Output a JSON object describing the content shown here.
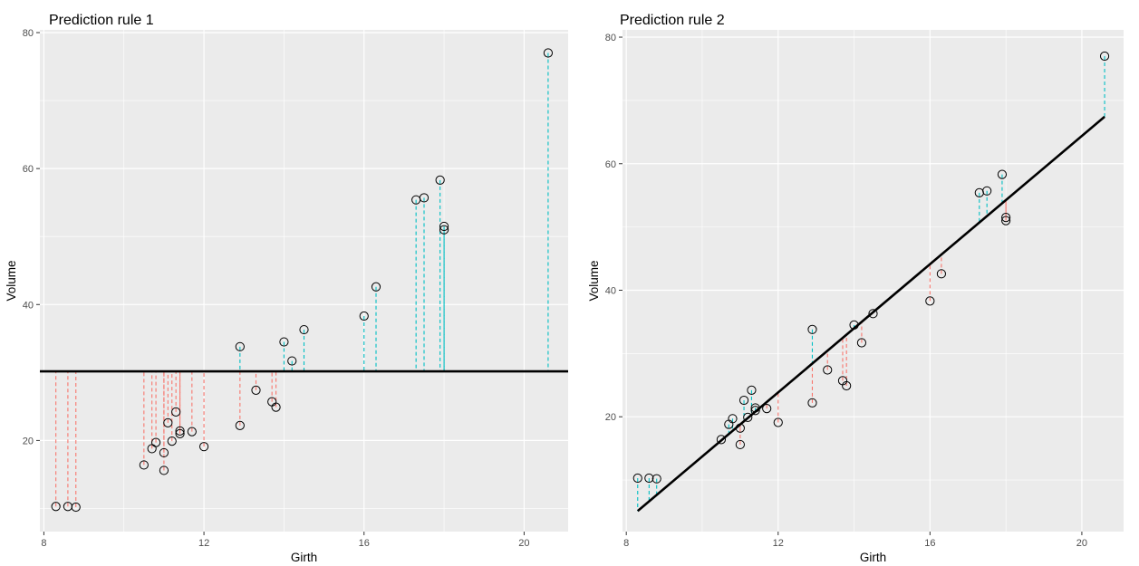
{
  "chart_data": [
    {
      "type": "scatter",
      "title": "Prediction rule 1",
      "xlabel": "Girth",
      "ylabel": "Volume",
      "xlim": [
        7.9,
        21.1
      ],
      "ylim": [
        6.6,
        80.4
      ],
      "x_ticks": [
        8,
        12,
        16,
        20
      ],
      "y_ticks": [
        20,
        40,
        60,
        80
      ],
      "grid": true,
      "prediction": {
        "kind": "constant",
        "value": 30.17
      },
      "residual_colors": {
        "below": "#F8766D",
        "above": "#00BFC4"
      },
      "points": {
        "x": [
          8.3,
          8.6,
          8.8,
          10.5,
          10.7,
          10.8,
          11.0,
          11.0,
          11.1,
          11.2,
          11.3,
          11.4,
          11.4,
          11.7,
          12.0,
          12.9,
          12.9,
          13.3,
          13.7,
          13.8,
          14.0,
          14.2,
          14.5,
          16.0,
          16.3,
          17.3,
          17.5,
          17.9,
          18.0,
          18.0,
          20.6
        ],
        "y": [
          10.3,
          10.3,
          10.2,
          16.4,
          18.8,
          19.7,
          15.6,
          18.2,
          22.6,
          19.9,
          24.2,
          21.0,
          21.4,
          21.3,
          19.1,
          22.2,
          33.8,
          27.4,
          25.7,
          24.9,
          34.5,
          31.7,
          36.3,
          38.3,
          42.6,
          55.4,
          55.7,
          58.3,
          51.5,
          51.0,
          77.0
        ]
      }
    },
    {
      "type": "scatter",
      "title": "Prediction rule 2",
      "xlabel": "Girth",
      "ylabel": "Volume",
      "xlim": [
        7.9,
        21.1
      ],
      "ylim": [
        1.85,
        81.15
      ],
      "x_ticks": [
        8,
        12,
        16,
        20
      ],
      "y_ticks": [
        20,
        40,
        60,
        80
      ],
      "grid": true,
      "prediction": {
        "kind": "linear",
        "intercept": -36.94,
        "slope": 5.066
      },
      "residual_colors": {
        "below": "#F8766D",
        "above": "#00BFC4"
      },
      "points": {
        "x": [
          8.3,
          8.6,
          8.8,
          10.5,
          10.7,
          10.8,
          11.0,
          11.0,
          11.1,
          11.2,
          11.3,
          11.4,
          11.4,
          11.7,
          12.0,
          12.9,
          12.9,
          13.3,
          13.7,
          13.8,
          14.0,
          14.2,
          14.5,
          16.0,
          16.3,
          17.3,
          17.5,
          17.9,
          18.0,
          18.0,
          20.6
        ],
        "y": [
          10.3,
          10.3,
          10.2,
          16.4,
          18.8,
          19.7,
          15.6,
          18.2,
          22.6,
          19.9,
          24.2,
          21.0,
          21.4,
          21.3,
          19.1,
          22.2,
          33.8,
          27.4,
          25.7,
          24.9,
          34.5,
          31.7,
          36.3,
          38.3,
          42.6,
          55.4,
          55.7,
          58.3,
          51.5,
          51.0,
          77.0
        ]
      }
    }
  ]
}
